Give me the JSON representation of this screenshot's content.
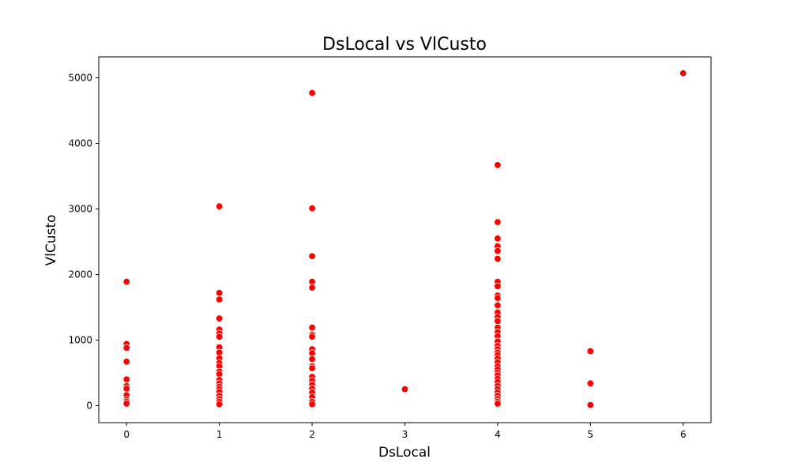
{
  "chart_data": {
    "type": "scatter",
    "title": "DsLocal vs VlCusto",
    "xlabel": "DsLocal",
    "ylabel": "VlCusto",
    "xlim": [
      -0.3,
      6.3
    ],
    "ylim": [
      -260,
      5320
    ],
    "xticks": [
      0,
      1,
      2,
      3,
      4,
      5,
      6
    ],
    "yticks": [
      0,
      1000,
      2000,
      3000,
      4000,
      5000
    ],
    "grid": false,
    "legend": "none",
    "marker_color": "#ff0000",
    "marker_edge": "#ffffff",
    "points": [
      {
        "x": 0,
        "y": 1890
      },
      {
        "x": 0,
        "y": 940
      },
      {
        "x": 0,
        "y": 880
      },
      {
        "x": 0,
        "y": 670
      },
      {
        "x": 0,
        "y": 400
      },
      {
        "x": 0,
        "y": 300
      },
      {
        "x": 0,
        "y": 260
      },
      {
        "x": 0,
        "y": 160
      },
      {
        "x": 0,
        "y": 90
      },
      {
        "x": 0,
        "y": 60
      },
      {
        "x": 0,
        "y": 30
      },
      {
        "x": 1,
        "y": 3040
      },
      {
        "x": 1,
        "y": 1720
      },
      {
        "x": 1,
        "y": 1620
      },
      {
        "x": 1,
        "y": 1330
      },
      {
        "x": 1,
        "y": 1160
      },
      {
        "x": 1,
        "y": 1100
      },
      {
        "x": 1,
        "y": 1050
      },
      {
        "x": 1,
        "y": 890
      },
      {
        "x": 1,
        "y": 810
      },
      {
        "x": 1,
        "y": 720
      },
      {
        "x": 1,
        "y": 650
      },
      {
        "x": 1,
        "y": 600
      },
      {
        "x": 1,
        "y": 520
      },
      {
        "x": 1,
        "y": 480
      },
      {
        "x": 1,
        "y": 390
      },
      {
        "x": 1,
        "y": 340
      },
      {
        "x": 1,
        "y": 290
      },
      {
        "x": 1,
        "y": 250
      },
      {
        "x": 1,
        "y": 210
      },
      {
        "x": 1,
        "y": 150
      },
      {
        "x": 1,
        "y": 100
      },
      {
        "x": 1,
        "y": 60
      },
      {
        "x": 1,
        "y": 20
      },
      {
        "x": 2,
        "y": 4770
      },
      {
        "x": 2,
        "y": 3010
      },
      {
        "x": 2,
        "y": 2280
      },
      {
        "x": 2,
        "y": 1890
      },
      {
        "x": 2,
        "y": 1800
      },
      {
        "x": 2,
        "y": 1190
      },
      {
        "x": 2,
        "y": 1080
      },
      {
        "x": 2,
        "y": 1050
      },
      {
        "x": 2,
        "y": 860
      },
      {
        "x": 2,
        "y": 800
      },
      {
        "x": 2,
        "y": 710
      },
      {
        "x": 2,
        "y": 600
      },
      {
        "x": 2,
        "y": 570
      },
      {
        "x": 2,
        "y": 440
      },
      {
        "x": 2,
        "y": 380
      },
      {
        "x": 2,
        "y": 320
      },
      {
        "x": 2,
        "y": 260
      },
      {
        "x": 2,
        "y": 200
      },
      {
        "x": 2,
        "y": 130
      },
      {
        "x": 2,
        "y": 60
      },
      {
        "x": 2,
        "y": 20
      },
      {
        "x": 3,
        "y": 250
      },
      {
        "x": 4,
        "y": 3670
      },
      {
        "x": 4,
        "y": 2800
      },
      {
        "x": 4,
        "y": 2550
      },
      {
        "x": 4,
        "y": 2430
      },
      {
        "x": 4,
        "y": 2360
      },
      {
        "x": 4,
        "y": 2240
      },
      {
        "x": 4,
        "y": 1890
      },
      {
        "x": 4,
        "y": 1820
      },
      {
        "x": 4,
        "y": 1680
      },
      {
        "x": 4,
        "y": 1640
      },
      {
        "x": 4,
        "y": 1530
      },
      {
        "x": 4,
        "y": 1420
      },
      {
        "x": 4,
        "y": 1350
      },
      {
        "x": 4,
        "y": 1290
      },
      {
        "x": 4,
        "y": 1190
      },
      {
        "x": 4,
        "y": 1120
      },
      {
        "x": 4,
        "y": 1060
      },
      {
        "x": 4,
        "y": 980
      },
      {
        "x": 4,
        "y": 910
      },
      {
        "x": 4,
        "y": 860
      },
      {
        "x": 4,
        "y": 810
      },
      {
        "x": 4,
        "y": 770
      },
      {
        "x": 4,
        "y": 720
      },
      {
        "x": 4,
        "y": 660
      },
      {
        "x": 4,
        "y": 600
      },
      {
        "x": 4,
        "y": 550
      },
      {
        "x": 4,
        "y": 500
      },
      {
        "x": 4,
        "y": 460
      },
      {
        "x": 4,
        "y": 410
      },
      {
        "x": 4,
        "y": 360
      },
      {
        "x": 4,
        "y": 300
      },
      {
        "x": 4,
        "y": 250
      },
      {
        "x": 4,
        "y": 200
      },
      {
        "x": 4,
        "y": 150
      },
      {
        "x": 4,
        "y": 100
      },
      {
        "x": 4,
        "y": 60
      },
      {
        "x": 4,
        "y": 30
      },
      {
        "x": 5,
        "y": 830
      },
      {
        "x": 5,
        "y": 340
      },
      {
        "x": 5,
        "y": 10
      },
      {
        "x": 6,
        "y": 5070
      }
    ]
  }
}
